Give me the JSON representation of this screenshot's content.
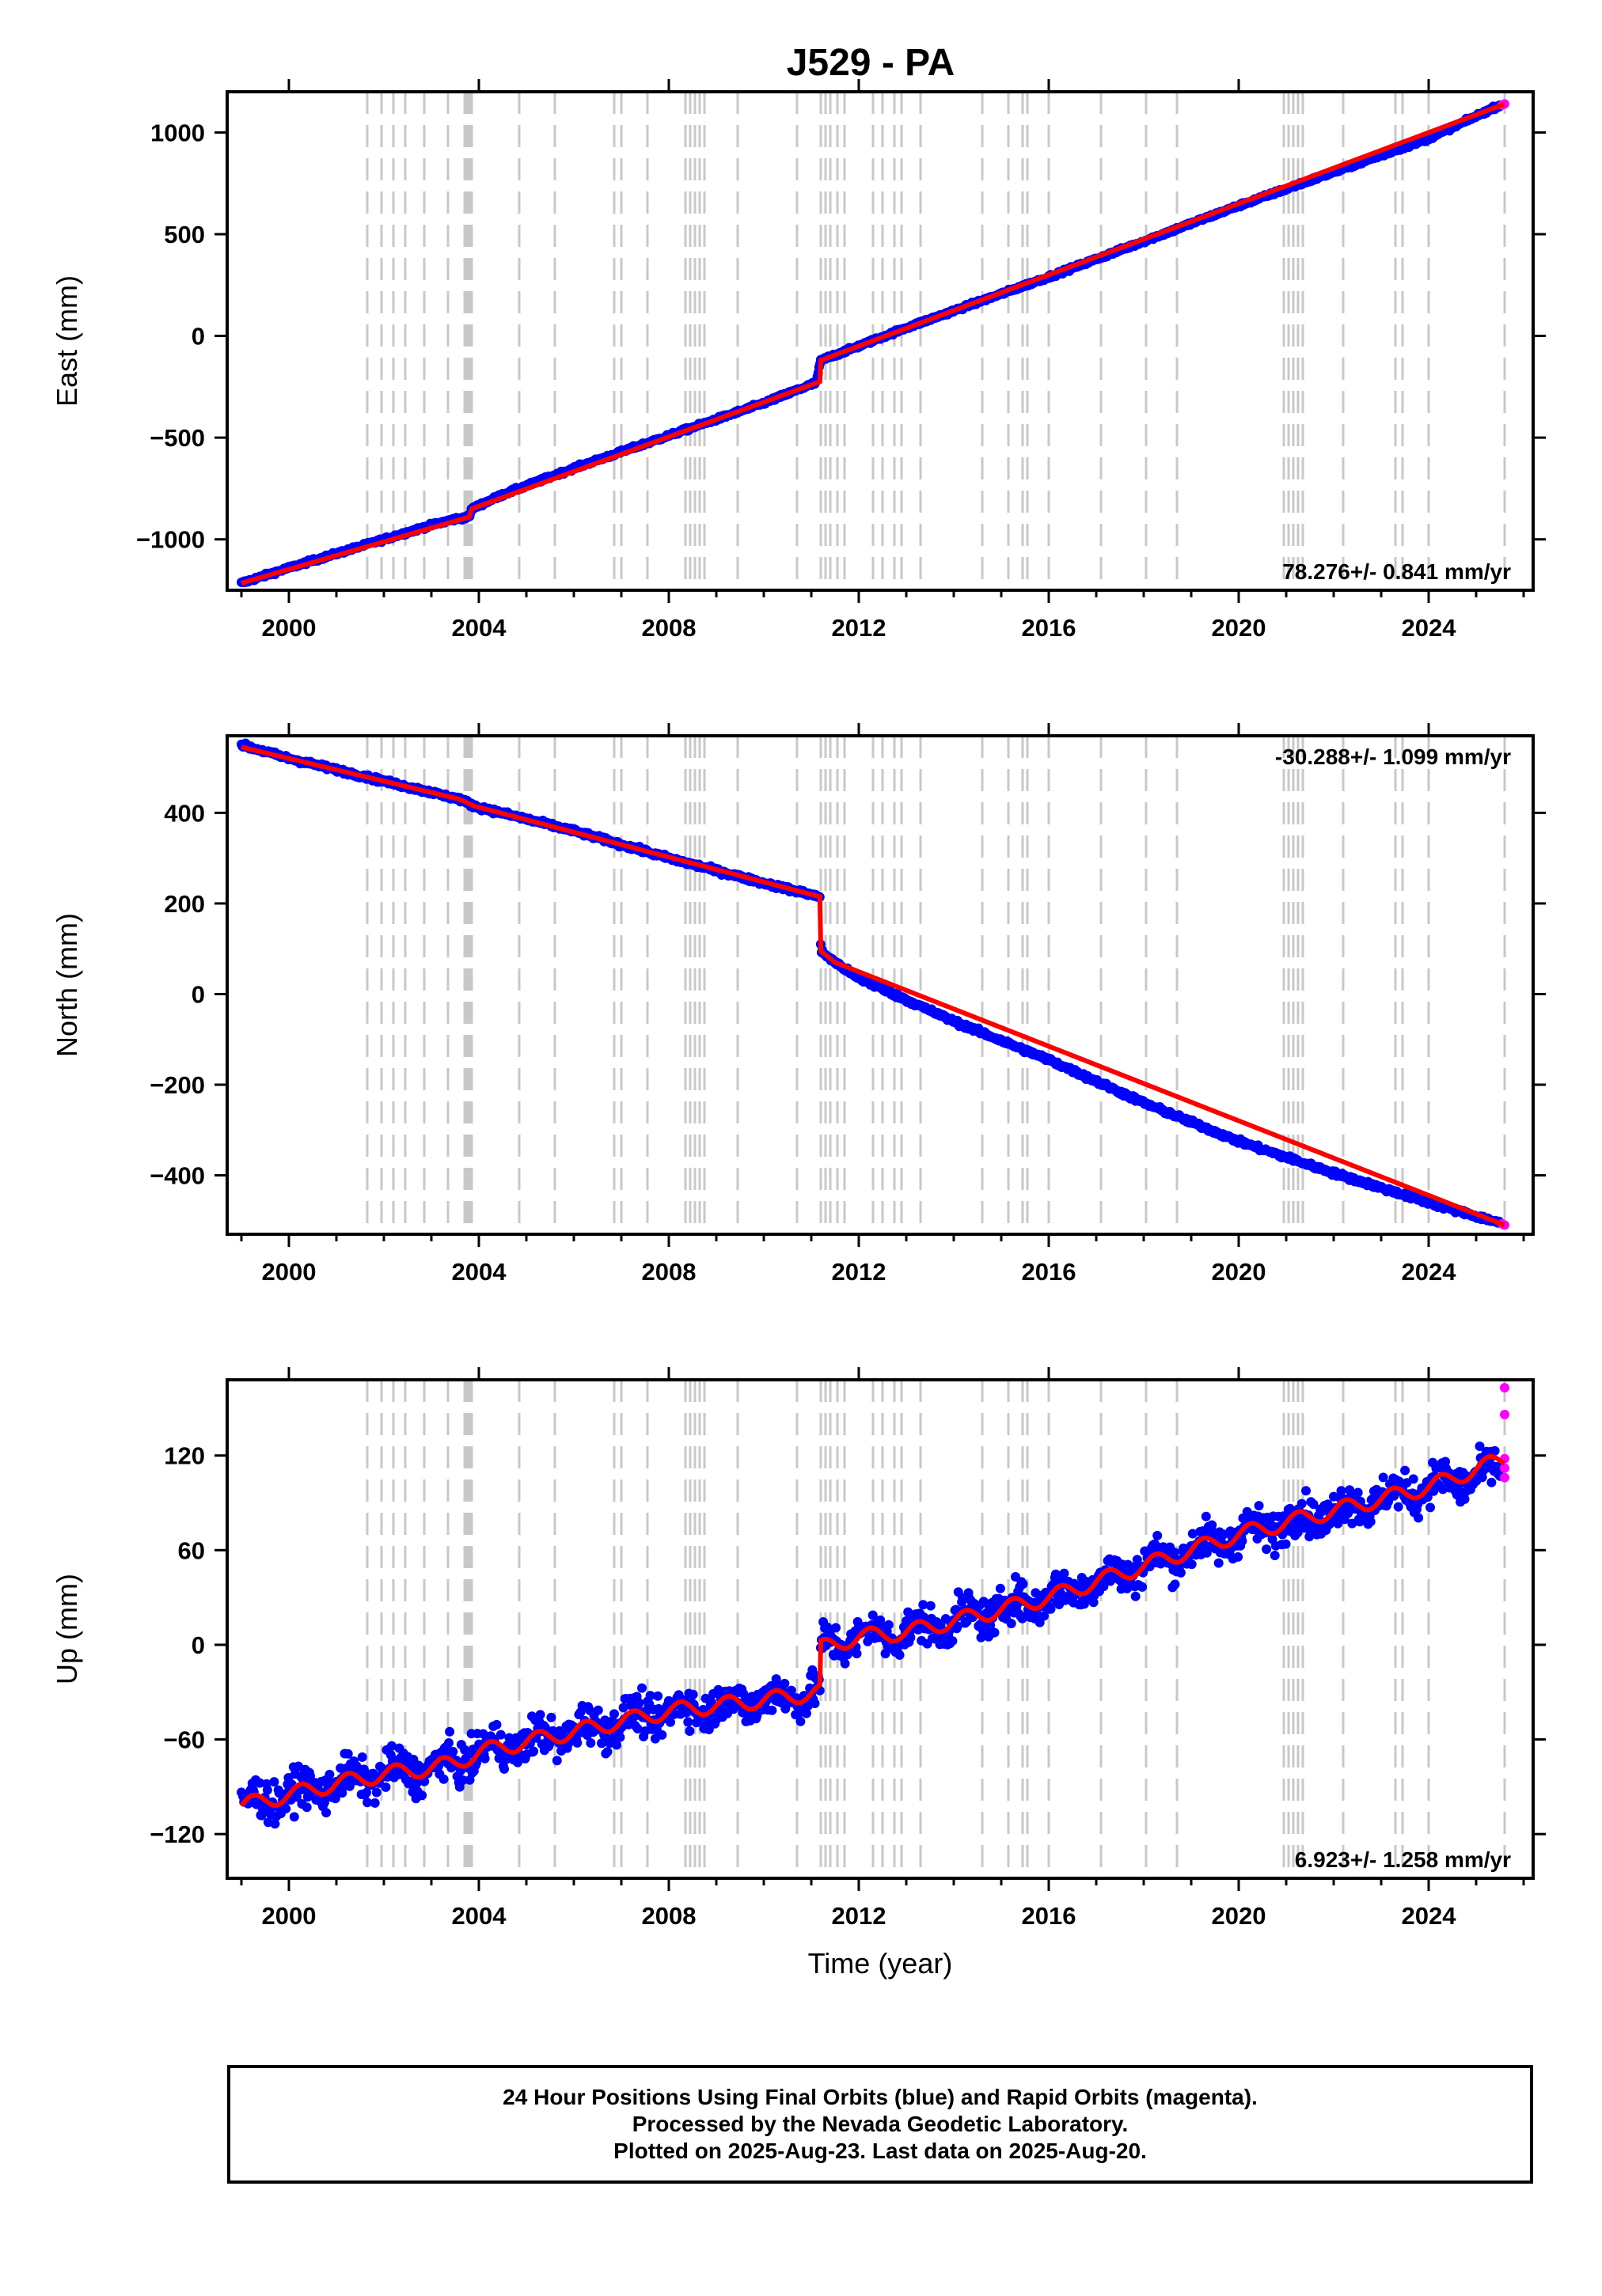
{
  "page_title": "J529 - PA",
  "footer": {
    "line1": "24 Hour Positions Using Final Orbits (blue) and Rapid Orbits (magenta).",
    "line2": "Processed by the Nevada Geodetic Laboratory.",
    "line3": "Plotted on 2025-Aug-23. Last data on 2025-Aug-20."
  },
  "colors": {
    "final_orbits": "#0000ff",
    "rapid_orbits": "#ff00ff",
    "model_fit": "#ff0000",
    "event_lines": "#c8c8c8",
    "axes": "#000000"
  },
  "chart_data": [
    {
      "type": "scatter",
      "component": "east",
      "title": "J529 - PA",
      "xlabel": "",
      "ylabel": "East (mm)",
      "xlim": [
        1998.7,
        2026.2
      ],
      "ylim": [
        -1250,
        1200
      ],
      "yticks": [
        -1000,
        -500,
        0,
        500,
        1000
      ],
      "ytick_labels": [
        "−1000",
        "−500",
        "0",
        "500",
        "1000"
      ],
      "xticks": [
        2000,
        2004,
        2008,
        2012,
        2016,
        2020,
        2024
      ],
      "xtick_labels": [
        "2000",
        "2004",
        "2008",
        "2012",
        "2016",
        "2020",
        "2024"
      ],
      "rate_label": "78.276+/- 0.841 mm/yr",
      "rate_label_position": "bottom-right",
      "grid": false,
      "series": [
        {
          "name": "Final Orbits",
          "color": "#0000ff",
          "x": [
            1999.0,
            2000.0,
            2001.0,
            2002.0,
            2003.0,
            2003.5,
            2003.8,
            2003.85,
            2004.5,
            2006.0,
            2008.0,
            2010.0,
            2011.1,
            2011.2,
            2012.0,
            2013.0,
            2016.0,
            2020.0,
            2024.0,
            2025.5
          ],
          "y": [
            -1215,
            -1140,
            -1070,
            -1000,
            -930,
            -900,
            -890,
            -850,
            -780,
            -650,
            -490,
            -330,
            -230,
            -120,
            -50,
            40,
            290,
            640,
            970,
            1135
          ],
          "noise": 8
        },
        {
          "name": "Rapid Orbits",
          "color": "#ff00ff",
          "x": [
            2025.55,
            2025.6
          ],
          "y": [
            1135,
            1140
          ]
        }
      ],
      "fit": {
        "color": "#ff0000",
        "x": [
          1999.0,
          2003.8,
          2003.85,
          2011.18,
          2011.2,
          2025.6
        ],
        "y": [
          -1215,
          -890,
          -850,
          -225,
          -120,
          1140
        ]
      }
    },
    {
      "type": "scatter",
      "component": "north",
      "xlabel": "",
      "ylabel": "North (mm)",
      "xlim": [
        1998.7,
        2026.2
      ],
      "ylim": [
        -530,
        570
      ],
      "yticks": [
        -400,
        -200,
        0,
        200,
        400
      ],
      "ytick_labels": [
        "−400",
        "−200",
        "0",
        "200",
        "400"
      ],
      "xticks": [
        2000,
        2004,
        2008,
        2012,
        2016,
        2020,
        2024
      ],
      "xtick_labels": [
        "2000",
        "2004",
        "2008",
        "2012",
        "2016",
        "2020",
        "2024"
      ],
      "rate_label": "-30.288+/- 1.099 mm/yr",
      "rate_label_position": "top-right",
      "grid": false,
      "series": [
        {
          "name": "Final Orbits",
          "color": "#0000ff",
          "x": [
            1999.0,
            2000.0,
            2002.0,
            2003.6,
            2003.9,
            2006.0,
            2008.0,
            2010.0,
            2011.18,
            2011.2,
            2011.5,
            2012.0,
            2014.0,
            2016.0,
            2018.0,
            2020.0,
            2022.0,
            2024.0,
            2025.5
          ],
          "y": [
            550,
            520,
            470,
            430,
            415,
            360,
            300,
            245,
            215,
            95,
            70,
            35,
            -60,
            -145,
            -240,
            -325,
            -395,
            -460,
            -505
          ],
          "noise": 5
        },
        {
          "name": "Rapid Orbits",
          "color": "#ff00ff",
          "x": [
            2025.55,
            2025.6
          ],
          "y": [
            -507,
            -510
          ]
        }
      ],
      "fit": {
        "color": "#ff0000",
        "x": [
          1999.0,
          2003.6,
          2003.9,
          2011.18,
          2011.2,
          2011.5,
          2025.6
        ],
        "y": [
          545,
          430,
          415,
          215,
          95,
          70,
          -510
        ]
      }
    },
    {
      "type": "scatter",
      "component": "up",
      "xlabel": "Time (year)",
      "ylabel": "Up (mm)",
      "xlim": [
        1998.7,
        2026.2
      ],
      "ylim": [
        -148,
        168
      ],
      "yticks": [
        -120,
        -60,
        0,
        60,
        120
      ],
      "ytick_labels": [
        "−120",
        "−60",
        "0",
        "60",
        "120"
      ],
      "xticks": [
        2000,
        2004,
        2008,
        2012,
        2016,
        2020,
        2024
      ],
      "xtick_labels": [
        "2000",
        "2004",
        "2008",
        "2012",
        "2016",
        "2020",
        "2024"
      ],
      "rate_label": "6.923+/- 1.258 mm/yr",
      "rate_label_position": "bottom-right",
      "grid": false,
      "series": [
        {
          "name": "Final Orbits",
          "color": "#0000ff",
          "x": [
            1999.0,
            2000.0,
            2001.0,
            2002.0,
            2003.0,
            2003.5,
            2004.0,
            2006.0,
            2008.0,
            2010.0,
            2011.18,
            2011.2,
            2012.0,
            2013.0,
            2014.0,
            2016.0,
            2018.0,
            2020.0,
            2022.0,
            2024.0,
            2025.5
          ],
          "y": [
            -102,
            -95,
            -88,
            -82,
            -78,
            -75,
            -68,
            -55,
            -42,
            -35,
            -30,
            -2,
            5,
            8,
            15,
            30,
            50,
            70,
            85,
            100,
            110
          ],
          "noise": 12
        },
        {
          "name": "Rapid Orbits",
          "color": "#ff00ff",
          "x": [
            2025.6,
            2025.6,
            2025.6,
            2025.6,
            2025.6
          ],
          "y": [
            163,
            146,
            118,
            112,
            106
          ]
        }
      ],
      "fit": {
        "color": "#ff0000",
        "x": [
          1999.0,
          2000.0,
          2001.0,
          2002.0,
          2003.0,
          2003.5,
          2004.0,
          2006.0,
          2008.0,
          2010.0,
          2011.18,
          2011.2,
          2012.0,
          2013.0,
          2014.0,
          2016.0,
          2018.0,
          2020.0,
          2022.0,
          2024.0,
          2025.6
        ],
        "y": [
          -102,
          -95,
          -88,
          -82,
          -78,
          -75,
          -68,
          -55,
          -42,
          -35,
          -30,
          -2,
          5,
          8,
          15,
          30,
          50,
          70,
          85,
          100,
          118
        ],
        "seasonal_amp": 5
      }
    }
  ],
  "event_lines_years": [
    2001.65,
    2001.95,
    2002.2,
    2002.45,
    2002.85,
    2003.35,
    2003.7,
    2003.75,
    2003.8,
    2003.85,
    2004.85,
    2005.6,
    2006.85,
    2007.0,
    2007.55,
    2008.35,
    2008.45,
    2008.55,
    2008.65,
    2008.75,
    2009.45,
    2010.7,
    2011.2,
    2011.3,
    2011.4,
    2011.55,
    2011.7,
    2012.3,
    2012.5,
    2012.75,
    2012.9,
    2013.3,
    2014.6,
    2015.15,
    2015.45,
    2015.55,
    2016.0,
    2017.1,
    2018.05,
    2018.7,
    2020.95,
    2021.05,
    2021.15,
    2021.25,
    2021.35,
    2022.2,
    2023.3,
    2023.45,
    2024.0,
    2025.6
  ]
}
